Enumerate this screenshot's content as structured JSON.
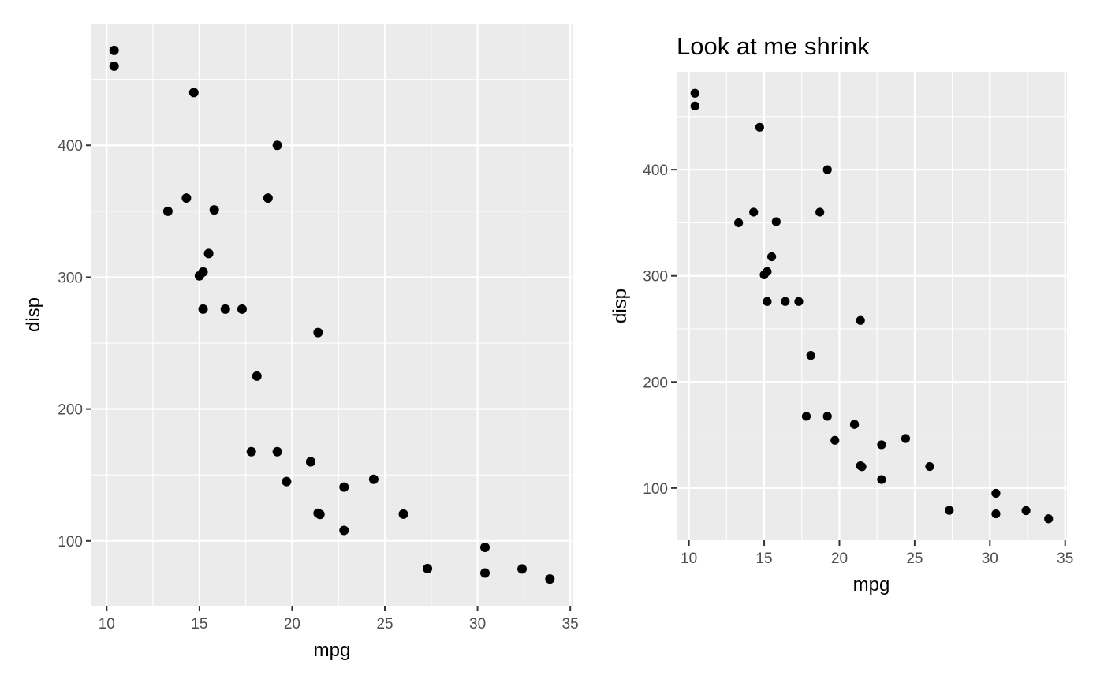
{
  "chart_data": [
    {
      "type": "scatter",
      "title": "",
      "xlabel": "mpg",
      "ylabel": "disp",
      "xlim": [
        9.18,
        35.12
      ],
      "ylim": [
        50.85,
        492.25
      ],
      "x_ticks": [
        10,
        15,
        20,
        25,
        30,
        35
      ],
      "y_ticks": [
        100,
        200,
        300,
        400
      ],
      "grid": true,
      "points": [
        {
          "x": 21.0,
          "y": 160
        },
        {
          "x": 21.0,
          "y": 160
        },
        {
          "x": 22.8,
          "y": 108
        },
        {
          "x": 21.4,
          "y": 258
        },
        {
          "x": 18.7,
          "y": 360
        },
        {
          "x": 18.1,
          "y": 225
        },
        {
          "x": 14.3,
          "y": 360
        },
        {
          "x": 24.4,
          "y": 146.7
        },
        {
          "x": 22.8,
          "y": 140.8
        },
        {
          "x": 19.2,
          "y": 167.6
        },
        {
          "x": 17.8,
          "y": 167.6
        },
        {
          "x": 16.4,
          "y": 275.8
        },
        {
          "x": 17.3,
          "y": 275.8
        },
        {
          "x": 15.2,
          "y": 275.8
        },
        {
          "x": 10.4,
          "y": 472
        },
        {
          "x": 10.4,
          "y": 460
        },
        {
          "x": 14.7,
          "y": 440
        },
        {
          "x": 32.4,
          "y": 78.7
        },
        {
          "x": 30.4,
          "y": 75.7
        },
        {
          "x": 33.9,
          "y": 71.1
        },
        {
          "x": 21.5,
          "y": 120.1
        },
        {
          "x": 15.5,
          "y": 318
        },
        {
          "x": 15.2,
          "y": 304
        },
        {
          "x": 13.3,
          "y": 350
        },
        {
          "x": 19.2,
          "y": 400
        },
        {
          "x": 27.3,
          "y": 79
        },
        {
          "x": 26.0,
          "y": 120.3
        },
        {
          "x": 30.4,
          "y": 95.1
        },
        {
          "x": 15.8,
          "y": 351
        },
        {
          "x": 19.7,
          "y": 145
        },
        {
          "x": 15.0,
          "y": 301
        },
        {
          "x": 21.4,
          "y": 121
        }
      ]
    },
    {
      "type": "scatter",
      "title": "Look at me shrink",
      "xlabel": "mpg",
      "ylabel": "disp",
      "xlim": [
        9.18,
        35.12
      ],
      "ylim": [
        50.85,
        492.25
      ],
      "x_ticks": [
        10,
        15,
        20,
        25,
        30,
        35
      ],
      "y_ticks": [
        100,
        200,
        300,
        400
      ],
      "grid": true,
      "points": [
        {
          "x": 21.0,
          "y": 160
        },
        {
          "x": 21.0,
          "y": 160
        },
        {
          "x": 22.8,
          "y": 108
        },
        {
          "x": 21.4,
          "y": 258
        },
        {
          "x": 18.7,
          "y": 360
        },
        {
          "x": 18.1,
          "y": 225
        },
        {
          "x": 14.3,
          "y": 360
        },
        {
          "x": 24.4,
          "y": 146.7
        },
        {
          "x": 22.8,
          "y": 140.8
        },
        {
          "x": 19.2,
          "y": 167.6
        },
        {
          "x": 17.8,
          "y": 167.6
        },
        {
          "x": 16.4,
          "y": 275.8
        },
        {
          "x": 17.3,
          "y": 275.8
        },
        {
          "x": 15.2,
          "y": 275.8
        },
        {
          "x": 10.4,
          "y": 472
        },
        {
          "x": 10.4,
          "y": 460
        },
        {
          "x": 14.7,
          "y": 440
        },
        {
          "x": 32.4,
          "y": 78.7
        },
        {
          "x": 30.4,
          "y": 75.7
        },
        {
          "x": 33.9,
          "y": 71.1
        },
        {
          "x": 21.5,
          "y": 120.1
        },
        {
          "x": 15.5,
          "y": 318
        },
        {
          "x": 15.2,
          "y": 304
        },
        {
          "x": 13.3,
          "y": 350
        },
        {
          "x": 19.2,
          "y": 400
        },
        {
          "x": 27.3,
          "y": 79
        },
        {
          "x": 26.0,
          "y": 120.3
        },
        {
          "x": 30.4,
          "y": 95.1
        },
        {
          "x": 15.8,
          "y": 351
        },
        {
          "x": 19.7,
          "y": 145
        },
        {
          "x": 15.0,
          "y": 301
        },
        {
          "x": 21.4,
          "y": 121
        }
      ]
    }
  ]
}
